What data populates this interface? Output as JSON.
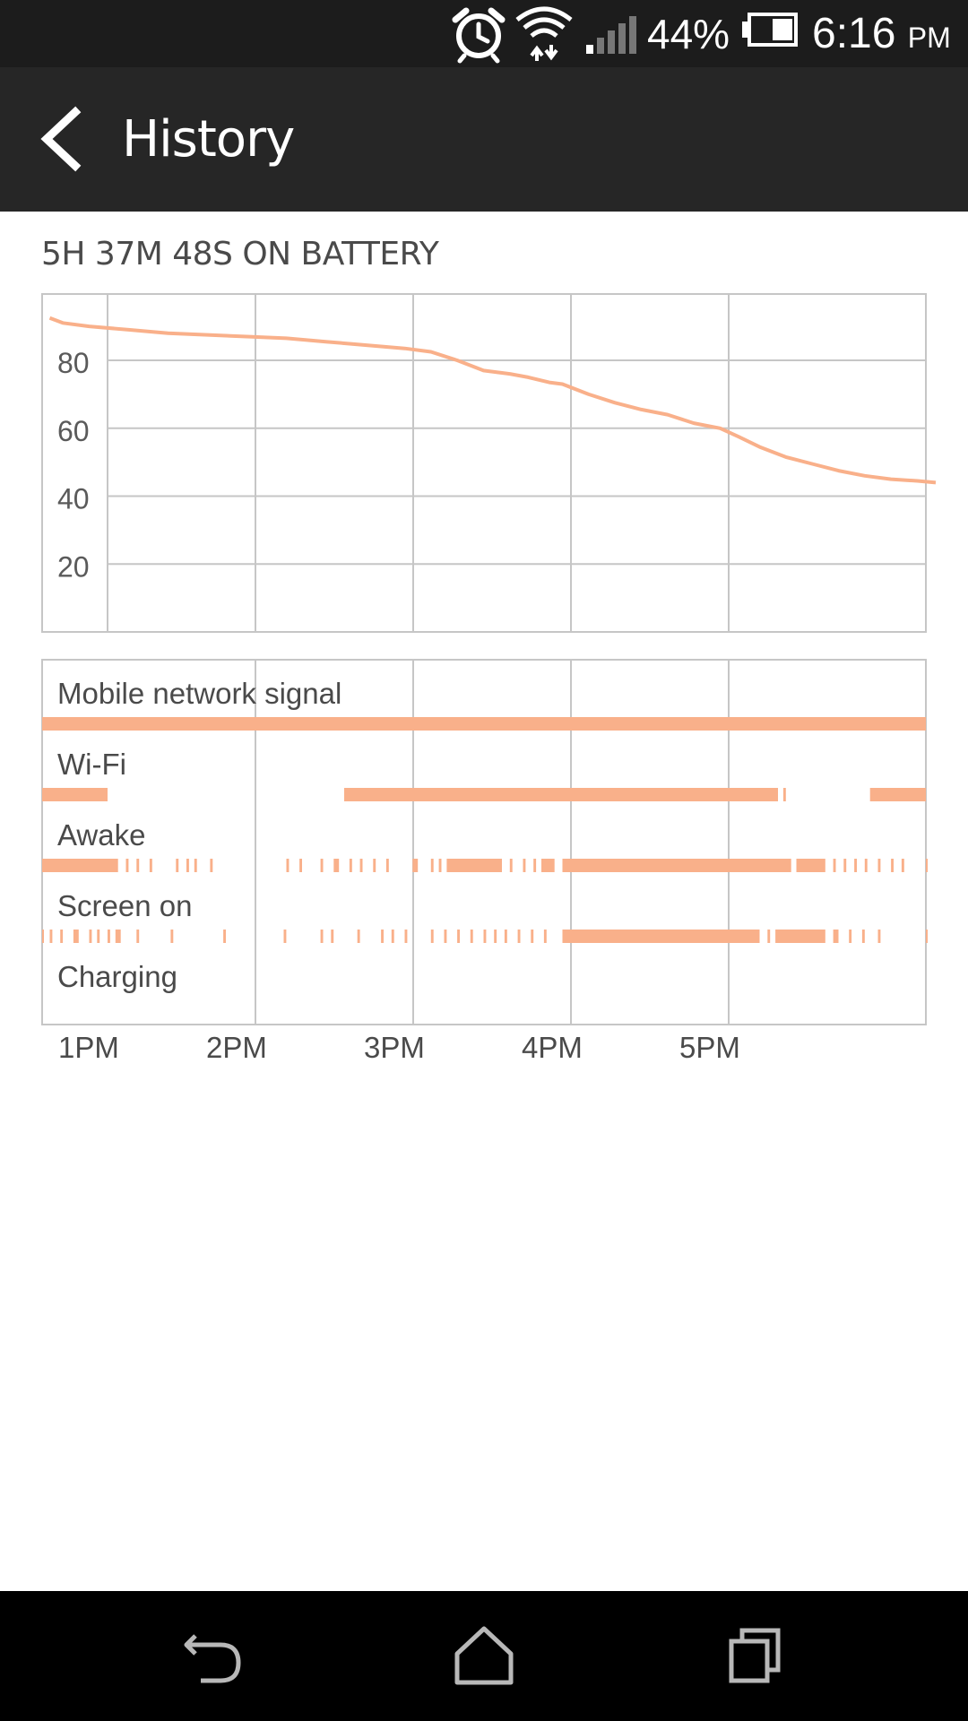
{
  "status_bar": {
    "battery_percent": "44%",
    "time": "6:16",
    "ampm": "PM",
    "icons": [
      "alarm-icon",
      "wifi-icon",
      "cell-signal-icon",
      "battery-icon"
    ]
  },
  "header": {
    "title": "History",
    "back_icon": "back-arrow-icon"
  },
  "summary": "5H 37M 48S ON BATTERY",
  "colors": {
    "accent": "#f9b08a",
    "grid": "#c6c6c6",
    "status_bar_bg": "#1c1c1c",
    "action_bar_bg": "#262626",
    "nav_bar_bg": "#000000"
  },
  "chart_data": {
    "type": "line",
    "title": "",
    "xlabel": "",
    "ylabel": "",
    "ylim": [
      0,
      100
    ],
    "yticks": [
      "80",
      "60",
      "40",
      "20"
    ],
    "xticks": [
      "1PM",
      "2PM",
      "3PM",
      "4PM",
      "5PM"
    ],
    "grid": true,
    "series": [
      {
        "x": [
          "12:38",
          "12:43",
          "12:53",
          "13:08",
          "13:23",
          "13:38",
          "13:53",
          "14:08",
          "14:23",
          "14:38",
          "14:53",
          "15:03",
          "15:13",
          "15:23",
          "15:33",
          "15:40",
          "15:48",
          "15:53",
          "16:03",
          "16:13",
          "16:23",
          "16:33",
          "16:43",
          "16:53",
          "17:00",
          "17:08",
          "17:18",
          "17:28",
          "17:38",
          "17:48",
          "17:58",
          "18:08",
          "18:15"
        ],
        "values": [
          92.5,
          91,
          90,
          89,
          88,
          87.5,
          87,
          86.5,
          85.5,
          84.5,
          83.5,
          82.5,
          80,
          77,
          76,
          75,
          73.5,
          73,
          70,
          67.5,
          65.5,
          64,
          61.5,
          60,
          57.5,
          54.5,
          51.5,
          49.5,
          47.5,
          46,
          45,
          44.5,
          44
        ]
      }
    ]
  },
  "timeline": {
    "rows": [
      {
        "label": "Mobile network signal",
        "segments": [
          [
            "12:30",
            "18:15"
          ]
        ]
      },
      {
        "label": "Wi-Fi",
        "segments": [
          [
            "12:30",
            "13:00"
          ],
          [
            "14:30",
            "17:15"
          ],
          [
            "17:17",
            "17:18"
          ],
          [
            "17:50",
            "18:15"
          ]
        ]
      },
      {
        "label": "Awake",
        "segments": [
          [
            "12:30",
            "13:04"
          ],
          [
            "13:07",
            "13:08"
          ],
          [
            "13:11",
            "13:12"
          ],
          [
            "13:16",
            "13:17"
          ],
          [
            "13:26",
            "13:27"
          ],
          [
            "13:30",
            "13:31"
          ],
          [
            "13:33",
            "13:34"
          ],
          [
            "13:39",
            "13:40"
          ],
          [
            "14:08",
            "14:09"
          ],
          [
            "14:13",
            "14:14"
          ],
          [
            "14:21",
            "14:22"
          ],
          [
            "14:26",
            "14:28"
          ],
          [
            "14:32",
            "14:33"
          ],
          [
            "14:36",
            "14:37"
          ],
          [
            "14:41",
            "14:42"
          ],
          [
            "14:46",
            "14:47"
          ],
          [
            "14:56",
            "14:58"
          ],
          [
            "15:03",
            "15:04"
          ],
          [
            "15:06",
            "15:07"
          ],
          [
            "15:09",
            "15:30"
          ],
          [
            "15:33",
            "15:34"
          ],
          [
            "15:38",
            "15:39"
          ],
          [
            "15:42",
            "15:43"
          ],
          [
            "15:45",
            "15:50"
          ],
          [
            "15:53",
            "17:20"
          ],
          [
            "17:22",
            "17:33"
          ],
          [
            "17:36",
            "17:37"
          ],
          [
            "17:40",
            "17:41"
          ],
          [
            "17:44",
            "17:45"
          ],
          [
            "17:48",
            "17:49"
          ],
          [
            "17:53",
            "17:54"
          ],
          [
            "17:58",
            "17:59"
          ],
          [
            "18:02",
            "18:03"
          ],
          [
            "18:13",
            "18:15"
          ]
        ]
      },
      {
        "label": "Screen on",
        "segments": [
          [
            "12:30",
            "12:31"
          ],
          [
            "12:33",
            "12:34"
          ],
          [
            "12:38",
            "12:39"
          ],
          [
            "12:42",
            "12:43"
          ],
          [
            "12:47",
            "12:49"
          ],
          [
            "12:53",
            "12:54"
          ],
          [
            "12:56",
            "12:57"
          ],
          [
            "13:00",
            "13:01"
          ],
          [
            "13:03",
            "13:05"
          ],
          [
            "13:11",
            "13:12"
          ],
          [
            "13:24",
            "13:25"
          ],
          [
            "13:44",
            "13:45"
          ],
          [
            "14:07",
            "14:08"
          ],
          [
            "14:21",
            "14:22"
          ],
          [
            "14:25",
            "14:26"
          ],
          [
            "14:35",
            "14:36"
          ],
          [
            "14:44",
            "14:45"
          ],
          [
            "14:48",
            "14:49"
          ],
          [
            "14:53",
            "14:54"
          ],
          [
            "15:03",
            "15:04"
          ],
          [
            "15:08",
            "15:09"
          ],
          [
            "15:13",
            "15:14"
          ],
          [
            "15:18",
            "15:19"
          ],
          [
            "15:23",
            "15:24"
          ],
          [
            "15:27",
            "15:28"
          ],
          [
            "15:31",
            "15:32"
          ],
          [
            "15:36",
            "15:37"
          ],
          [
            "15:41",
            "15:42"
          ],
          [
            "15:46",
            "15:47"
          ],
          [
            "15:53",
            "17:08"
          ],
          [
            "17:11",
            "17:12"
          ],
          [
            "17:14",
            "17:33"
          ],
          [
            "17:36",
            "17:38"
          ],
          [
            "17:42",
            "17:43"
          ],
          [
            "17:47",
            "17:48"
          ],
          [
            "17:53",
            "17:54"
          ],
          [
            "18:13",
            "18:15"
          ]
        ]
      },
      {
        "label": "Charging",
        "segments": []
      }
    ]
  }
}
